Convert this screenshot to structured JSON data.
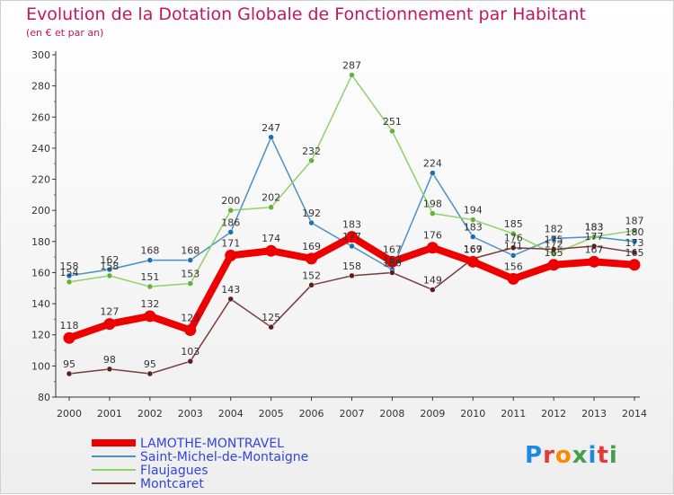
{
  "header": {
    "title": "Evolution de la Dotation Globale de Fonctionnement par Habitant",
    "subtitle": "(en € et par an)"
  },
  "brand": {
    "text": "Proxiti",
    "colors": [
      "#1e88e5",
      "#e53935",
      "#fb8c00",
      "#43a047",
      "#1e88e5",
      "#e53935",
      "#43a047"
    ]
  },
  "chart_data": {
    "type": "line",
    "title": "Evolution de la Dotation Globale de Fonctionnement par Habitant",
    "subtitle": "(en € et par an)",
    "xlabel": "",
    "ylabel": "",
    "x": [
      2000,
      2001,
      2002,
      2003,
      2004,
      2005,
      2006,
      2007,
      2008,
      2009,
      2010,
      2011,
      2012,
      2013,
      2014
    ],
    "ylim": [
      80,
      300
    ],
    "yticks": [
      80,
      100,
      120,
      140,
      160,
      180,
      200,
      220,
      240,
      260,
      280,
      300
    ],
    "grid": false,
    "legend": "bottom-left",
    "series": [
      {
        "name": "Saint-Michel-de-Montaigne",
        "color": "#4a90c2",
        "dot": "#1f6fb2",
        "width": 1.5,
        "values": [
          158,
          162,
          168,
          168,
          186,
          247,
          192,
          177,
          162,
          224,
          183,
          171,
          182,
          183,
          180
        ],
        "labels": [
          "158",
          "162",
          "168",
          "168",
          "186",
          "247",
          "192",
          "177",
          "162",
          "224",
          "183",
          "171",
          "182",
          "183",
          "180"
        ]
      },
      {
        "name": "Flaujagues",
        "color": "#8fd16a",
        "dot": "#5fb33a",
        "width": 1.5,
        "values": [
          154,
          158,
          151,
          153,
          200,
          202,
          232,
          287,
          251,
          198,
          194,
          185,
          172,
          183,
          187
        ],
        "labels": [
          "154",
          "158",
          "151",
          "153",
          "200",
          "202",
          "232",
          "287",
          "251",
          "198",
          "194",
          "185",
          "172",
          "183",
          "187"
        ]
      },
      {
        "name": "Montcaret",
        "color": "#7a3b3b",
        "dot": "#5a1f1f",
        "width": 1.5,
        "values": [
          95,
          98,
          95,
          103,
          143,
          125,
          152,
          158,
          160,
          149,
          169,
          176,
          175,
          177,
          173
        ],
        "labels": [
          "95",
          "98",
          "95",
          "103",
          "143",
          "125",
          "152",
          "158",
          "160",
          "149",
          "169",
          "176",
          "175",
          "177",
          "173"
        ]
      },
      {
        "name": "LAMOTHE-MONTRAVEL",
        "color": "#ee0000",
        "dot": "#ee0000",
        "width": 8,
        "values": [
          118,
          127,
          132,
          123,
          171,
          174,
          169,
          183,
          167,
          176,
          167,
          156,
          165,
          167,
          165
        ],
        "labels": [
          "118",
          "127",
          "132",
          "123",
          "171",
          "174",
          "169",
          "183",
          "167",
          "176",
          "167",
          "156",
          "165",
          "167",
          "165"
        ]
      }
    ]
  }
}
